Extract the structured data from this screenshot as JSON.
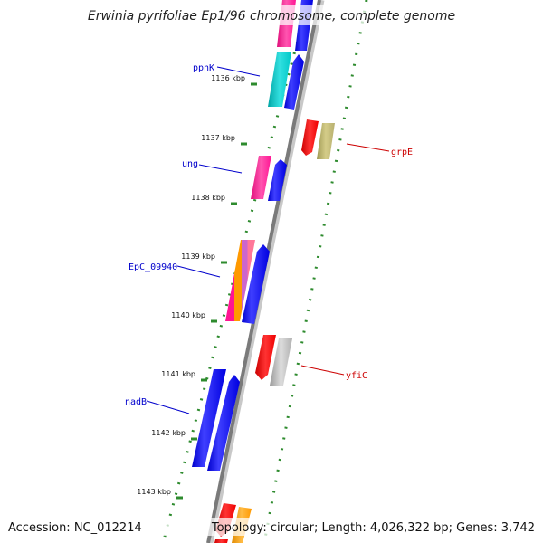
{
  "title": "Erwinia pyrifoliae Ep1/96 chromosome, complete genome",
  "footer": {
    "accession": "Accession: NC_012214",
    "topology": "Topology: circular; Length: 4,026,322 bp; Genes: 3,742"
  },
  "colors": {
    "background": "#ffffff",
    "backbone": "#8c8c8c",
    "tick": "#2e8b2e",
    "left_label": "#0000cc",
    "right_label": "#cc0000"
  },
  "kbp_ticks": [
    {
      "label": "1136 kbp"
    },
    {
      "label": "1137 kbp"
    },
    {
      "label": "1138 kbp"
    },
    {
      "label": "1139 kbp"
    },
    {
      "label": "1140 kbp"
    },
    {
      "label": "1141 kbp"
    },
    {
      "label": "1142 kbp"
    },
    {
      "label": "1143 kbp"
    }
  ],
  "gene_labels": [
    {
      "name": "ppnK",
      "side": "left"
    },
    {
      "name": "ung",
      "side": "left"
    },
    {
      "name": "EpC_09940",
      "side": "left"
    },
    {
      "name": "nadB",
      "side": "left"
    },
    {
      "name": "grpE",
      "side": "right"
    },
    {
      "name": "yfiC",
      "side": "right"
    }
  ],
  "features": [
    {
      "id": "top-forward",
      "color": "#ff1493"
    },
    {
      "id": "ppnK-forward",
      "color": "#00c8c8"
    },
    {
      "id": "grpE-reverse",
      "color": "#ff0000"
    },
    {
      "id": "grpE-function",
      "color": "#b8b070"
    },
    {
      "id": "ung-forward",
      "color": "#ff1493"
    },
    {
      "id": "EpC_09940-forward",
      "color": "#ff1493"
    },
    {
      "id": "yfiC-reverse",
      "color": "#ff0000"
    },
    {
      "id": "yfiC-function",
      "color": "#b0b0b0"
    },
    {
      "id": "nadB-forward",
      "color": "#0000ee"
    },
    {
      "id": "bottom-reverse",
      "color": "#ff0000"
    },
    {
      "id": "bottom-function",
      "color": "#ff9900"
    }
  ]
}
